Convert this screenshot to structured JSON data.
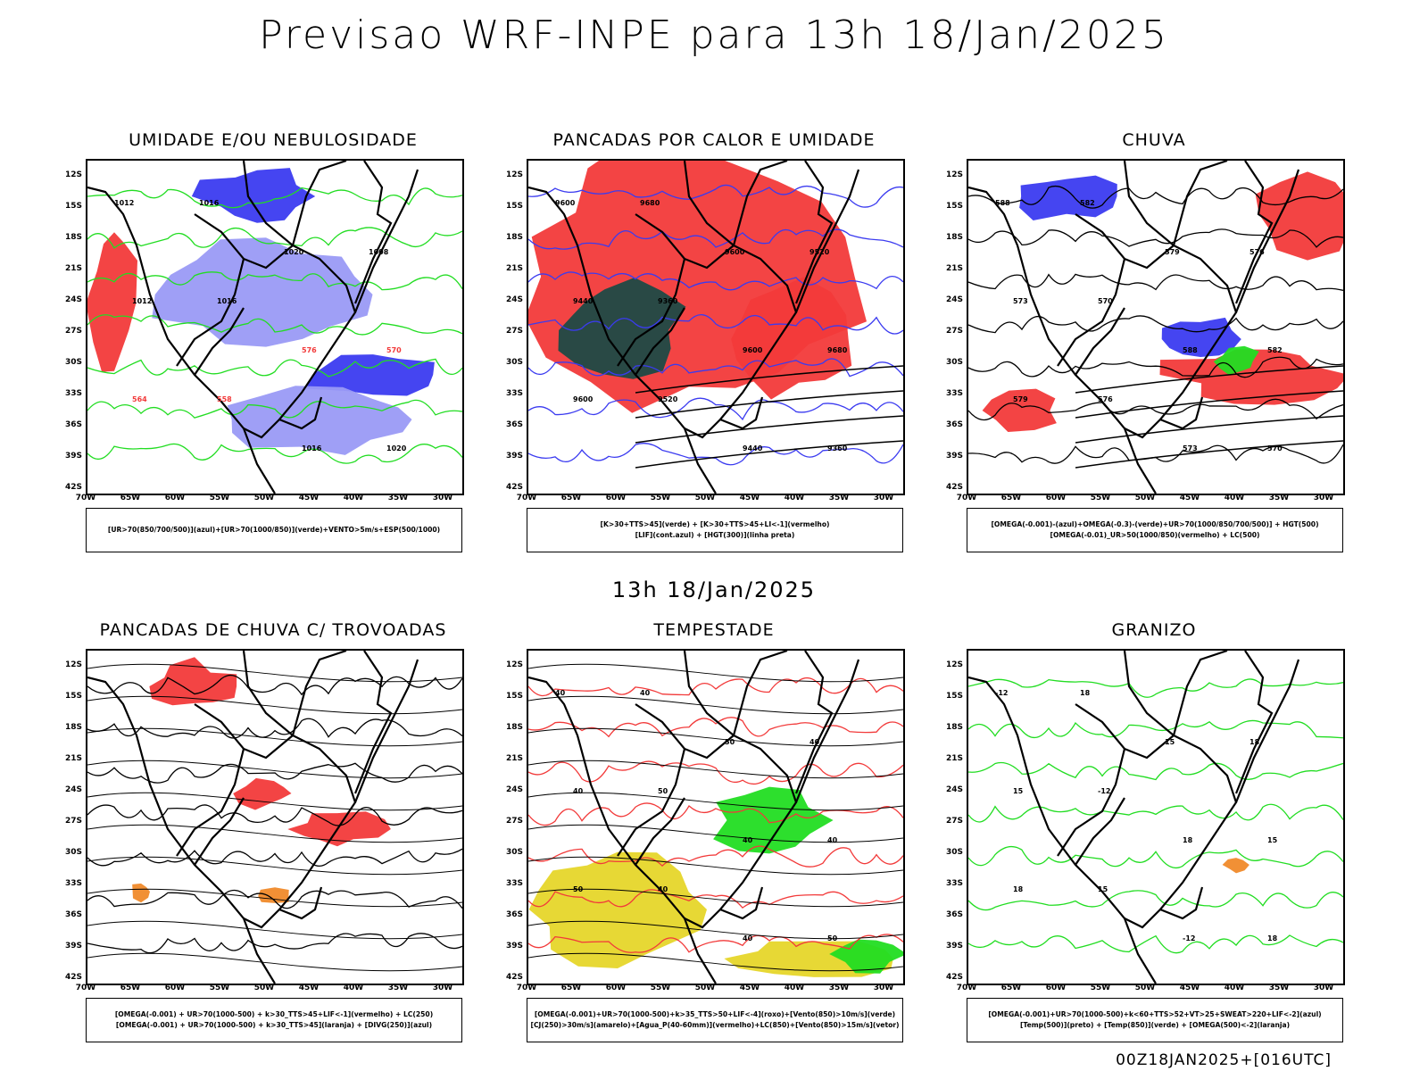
{
  "title": "Previsao WRF-INPE  para 13h 18/Jan/2025",
  "middle_title": "13h 18/Jan/2025",
  "footer": "00Z18JAN2025+[016UTC]",
  "lat_labels": [
    "12S",
    "15S",
    "18S",
    "21S",
    "24S",
    "27S",
    "30S",
    "33S",
    "36S",
    "39S",
    "42S"
  ],
  "lon_labels": [
    "70W",
    "65W",
    "60W",
    "55W",
    "50W",
    "45W",
    "40W",
    "35W",
    "30W"
  ],
  "panels": [
    {
      "title": "UMIDADE E/OU NEBULOSIDADE",
      "legend": [
        "[UR>70(850/700/500)](azul)+[UR>70(1000/850)](verde)+VENTO>5m/s+ESP(500/1000)"
      ],
      "contour_labels": [
        "1012",
        "1016",
        "1020",
        "1008",
        "1012",
        "1016",
        "576",
        "570",
        "564",
        "558",
        "1016",
        "1020"
      ]
    },
    {
      "title": "PANCADAS POR CALOR E UMIDADE",
      "legend": [
        "[K>30+TTS>45](verde) + [K>30+TTS>45+LI<-1](vermelho)",
        "[LIF](cont.azul) + [HGT(300)](linha preta)"
      ],
      "contour_labels": [
        "9600",
        "9680",
        "9600",
        "9520",
        "9440",
        "9360",
        "9600",
        "9680",
        "9600",
        "9520",
        "9440",
        "9360"
      ]
    },
    {
      "title": "CHUVA",
      "legend": [
        "[OMEGA(-0.001)-(azul)+OMEGA(-0.3)-(verde)+UR>70(1000/850/700/500)] + HGT(500)",
        "[OMEGA(-0.01)_UR>50(1000/850)(vermelho) + LC(500)"
      ],
      "contour_labels": [
        "588",
        "582",
        "579",
        "576",
        "573",
        "570",
        "588",
        "582",
        "579",
        "576",
        "573",
        "570"
      ]
    },
    {
      "title": "PANCADAS DE CHUVA C/ TROVOADAS",
      "legend": [
        "[OMEGA(-0.001) + UR>70(1000-500) + k>30_TTS>45+LIF<-1](vermelho) + LC(250)",
        "[OMEGA(-0.001) + UR>70(1000-500) + k>30_TTS>45](laranja) + [DIVG(250)](azul)"
      ],
      "contour_labels": []
    },
    {
      "title": "TEMPESTADE",
      "legend": [
        "[OMEGA(-0.001)+UR>70(1000-500)+k>35_TTS>50+LIF<-4](roxo)+[Vento(850)>10m/s](verde)",
        "[CJ(250)>30m/s](amarelo)+[Agua_P(40-60mm)](vermelho)+LC(850)+[Vento(850)>15m/s](vetor)"
      ],
      "contour_labels": [
        "40",
        "40",
        "50",
        "40",
        "40",
        "50",
        "40",
        "40",
        "50",
        "40",
        "40",
        "50"
      ]
    },
    {
      "title": "GRANIZO",
      "legend": [
        "[OMEGA(-0.001)+UR>70(1000-500)+k<60+TTS>52+VT>25+SWEAT>220+LIF<-2](azul)",
        "[Temp(500)](preto) + [Temp(850)](verde) + [OMEGA(500)<-2](laranja)"
      ],
      "contour_labels": [
        "-12",
        "18",
        "15",
        "18",
        "15",
        "-12",
        "18",
        "15",
        "18",
        "15",
        "-12",
        "18"
      ]
    }
  ],
  "colors": {
    "blue": "#3b3bf0",
    "lightblue": "#9a9af5",
    "green": "#22dd22",
    "red": "#f23a3a",
    "darkteal": "#1d4a46",
    "yellow": "#e6d62a",
    "orange": "#f08a2a",
    "black": "#000000"
  }
}
